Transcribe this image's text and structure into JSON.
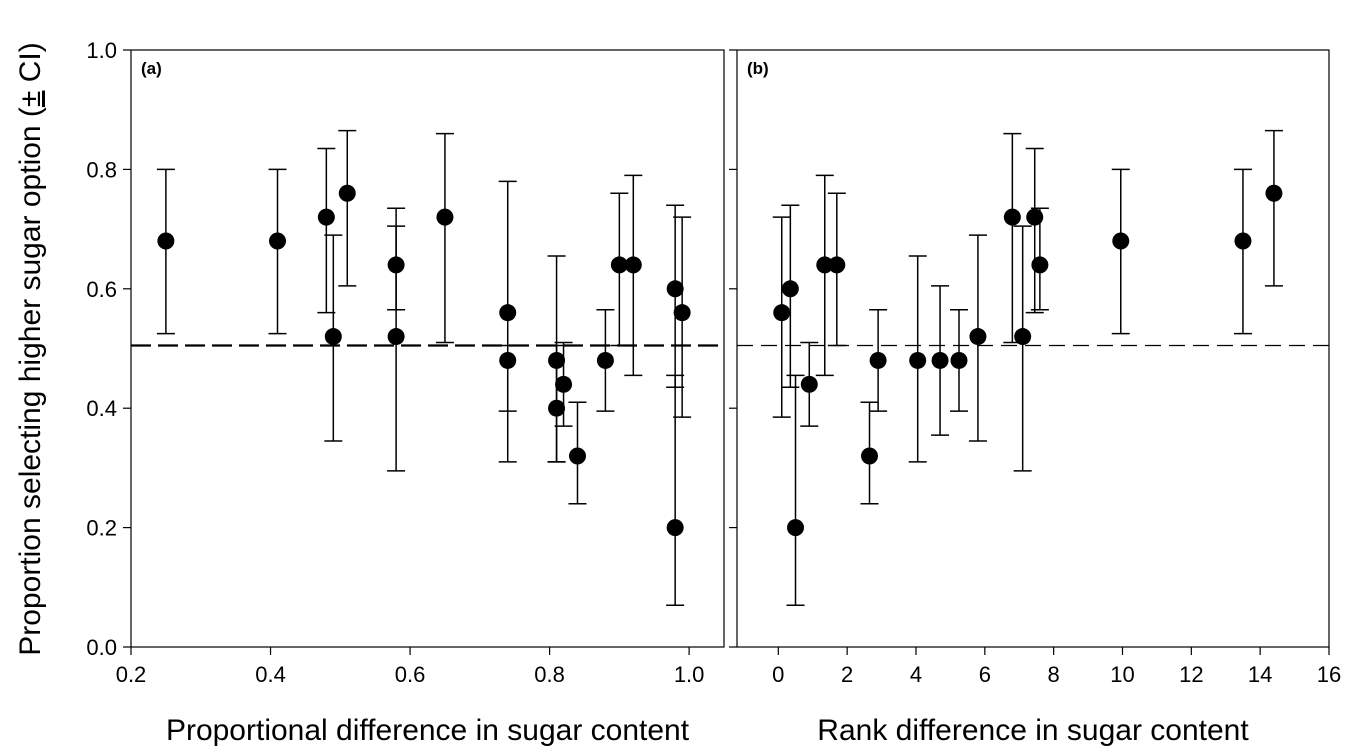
{
  "chart_data": {
    "type": "scatter",
    "ylabel": "Proportion selecting higher sugar option (",
    "ylabel_pm": "±",
    "ylabel_tail": " CI)",
    "ylim": [
      0.0,
      1.0
    ],
    "yticks": [
      "0.0",
      "0.2",
      "0.4",
      "0.6",
      "0.8",
      "1.0"
    ],
    "reference_line_y": 0.505,
    "panels": [
      {
        "panel_label": "(a)",
        "xlabel": "Proportional difference in sugar content",
        "xlim": [
          0.2,
          1.05
        ],
        "xticks": [
          "0.2",
          "0.4",
          "0.6",
          "0.8",
          "1.0"
        ],
        "points": [
          {
            "x": 0.25,
            "y": 0.68,
            "lo": 0.525,
            "hi": 0.8
          },
          {
            "x": 0.41,
            "y": 0.68,
            "lo": 0.525,
            "hi": 0.8
          },
          {
            "x": 0.48,
            "y": 0.72,
            "lo": 0.56,
            "hi": 0.835
          },
          {
            "x": 0.49,
            "y": 0.52,
            "lo": 0.345,
            "hi": 0.69
          },
          {
            "x": 0.51,
            "y": 0.76,
            "lo": 0.605,
            "hi": 0.865
          },
          {
            "x": 0.58,
            "y": 0.64,
            "lo": 0.565,
            "hi": 0.735
          },
          {
            "x": 0.58,
            "y": 0.52,
            "lo": 0.295,
            "hi": 0.705
          },
          {
            "x": 0.65,
            "y": 0.72,
            "lo": 0.51,
            "hi": 0.86
          },
          {
            "x": 0.74,
            "y": 0.56,
            "lo": 0.395,
            "hi": 0.78
          },
          {
            "x": 0.74,
            "y": 0.48,
            "lo": 0.31,
            "hi": 0.505
          },
          {
            "x": 0.81,
            "y": 0.48,
            "lo": 0.31,
            "hi": 0.655
          },
          {
            "x": 0.81,
            "y": 0.4,
            "lo": 0.31,
            "hi": 0.505
          },
          {
            "x": 0.82,
            "y": 0.44,
            "lo": 0.37,
            "hi": 0.51
          },
          {
            "x": 0.84,
            "y": 0.32,
            "lo": 0.24,
            "hi": 0.41
          },
          {
            "x": 0.88,
            "y": 0.48,
            "lo": 0.395,
            "hi": 0.565
          },
          {
            "x": 0.9,
            "y": 0.64,
            "lo": 0.505,
            "hi": 0.76
          },
          {
            "x": 0.92,
            "y": 0.64,
            "lo": 0.455,
            "hi": 0.79
          },
          {
            "x": 0.98,
            "y": 0.6,
            "lo": 0.435,
            "hi": 0.74
          },
          {
            "x": 0.98,
            "y": 0.2,
            "lo": 0.07,
            "hi": 0.455
          },
          {
            "x": 0.99,
            "y": 0.56,
            "lo": 0.385,
            "hi": 0.72
          }
        ]
      },
      {
        "panel_label": "(b)",
        "xlabel": "Rank difference in sugar content",
        "xlim": [
          -1.2,
          16
        ],
        "xticks": [
          "0",
          "2",
          "4",
          "6",
          "8",
          "10",
          "12",
          "14",
          "16"
        ],
        "points": [
          {
            "x": 0.1,
            "y": 0.56,
            "lo": 0.385,
            "hi": 0.72
          },
          {
            "x": 0.35,
            "y": 0.6,
            "lo": 0.435,
            "hi": 0.74
          },
          {
            "x": 0.5,
            "y": 0.2,
            "lo": 0.07,
            "hi": 0.455
          },
          {
            "x": 0.9,
            "y": 0.44,
            "lo": 0.37,
            "hi": 0.51
          },
          {
            "x": 1.35,
            "y": 0.64,
            "lo": 0.455,
            "hi": 0.79
          },
          {
            "x": 1.7,
            "y": 0.64,
            "lo": 0.505,
            "hi": 0.76
          },
          {
            "x": 2.65,
            "y": 0.32,
            "lo": 0.24,
            "hi": 0.41
          },
          {
            "x": 2.9,
            "y": 0.48,
            "lo": 0.395,
            "hi": 0.565
          },
          {
            "x": 4.05,
            "y": 0.48,
            "lo": 0.31,
            "hi": 0.655
          },
          {
            "x": 4.7,
            "y": 0.48,
            "lo": 0.355,
            "hi": 0.605
          },
          {
            "x": 5.25,
            "y": 0.48,
            "lo": 0.395,
            "hi": 0.565
          },
          {
            "x": 5.8,
            "y": 0.52,
            "lo": 0.345,
            "hi": 0.69
          },
          {
            "x": 6.8,
            "y": 0.72,
            "lo": 0.51,
            "hi": 0.86
          },
          {
            "x": 7.1,
            "y": 0.52,
            "lo": 0.295,
            "hi": 0.705
          },
          {
            "x": 7.45,
            "y": 0.72,
            "lo": 0.56,
            "hi": 0.835
          },
          {
            "x": 7.6,
            "y": 0.64,
            "lo": 0.565,
            "hi": 0.735
          },
          {
            "x": 9.95,
            "y": 0.68,
            "lo": 0.525,
            "hi": 0.8
          },
          {
            "x": 13.5,
            "y": 0.68,
            "lo": 0.525,
            "hi": 0.8
          },
          {
            "x": 14.4,
            "y": 0.76,
            "lo": 0.605,
            "hi": 0.865
          }
        ]
      }
    ]
  }
}
